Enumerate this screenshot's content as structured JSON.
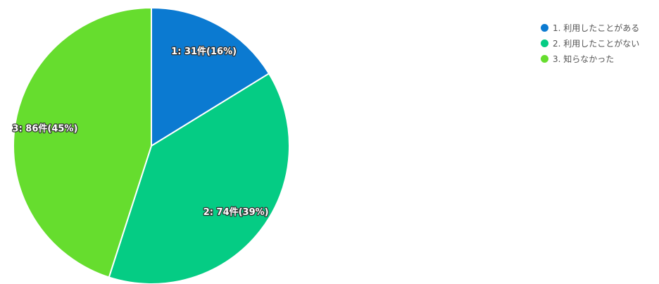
{
  "chart_data": {
    "type": "pie",
    "slices": [
      {
        "id": "1",
        "legend": "1. 利用したことがある",
        "label": "1: 31件(16%)",
        "value": 31,
        "percent": 16,
        "color": "#0b7ad1"
      },
      {
        "id": "2",
        "legend": "2. 利用したことがない",
        "label": "2: 74件(39%)",
        "value": 74,
        "percent": 39,
        "color": "#05cc84"
      },
      {
        "id": "3",
        "legend": "3. 知らなかった",
        "label": "3: 86件(45%)",
        "value": 86,
        "percent": 45,
        "color": "#66dd2e"
      }
    ],
    "start_angle_deg": 0,
    "direction": "clockwise",
    "legend_position": "top-right"
  }
}
